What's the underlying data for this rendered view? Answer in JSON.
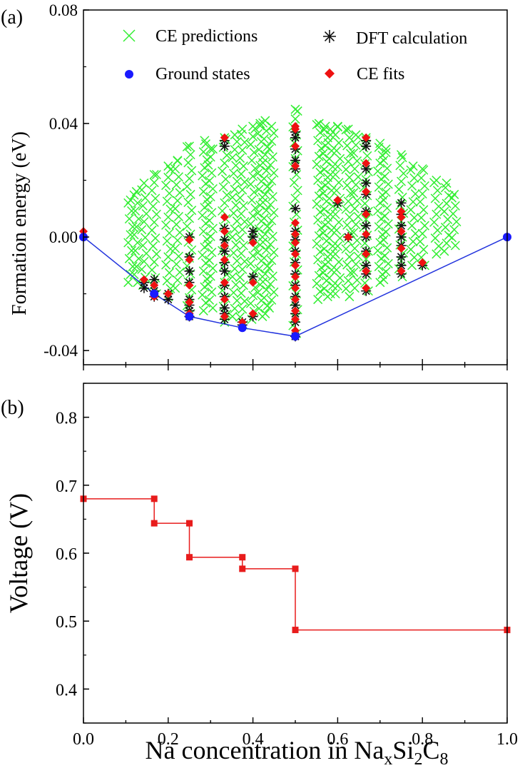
{
  "panel_labels": {
    "a": "(a)",
    "b": "(b)"
  },
  "xlabel": {
    "base": "Na concentration in Na",
    "sub1": "x",
    "mid1": "Si",
    "sub2": "2",
    "mid2": "C",
    "sub3": "8"
  },
  "colors": {
    "ce_predictions": "#33ee33",
    "dft": "#111111",
    "ground": "#1a1aff",
    "ce_fits": "#ee1111",
    "hull": "#2233dd",
    "voltage": "#e81c1c"
  },
  "chart_data": [
    {
      "type": "scatter",
      "panel": "(a)",
      "ylabel": "Formation energy (eV)",
      "xlim": [
        0,
        1.0
      ],
      "ylim": [
        -0.045,
        0.08
      ],
      "yticks": [
        -0.04,
        0.0,
        0.04,
        0.08
      ],
      "ytick_labels": [
        "-0.04",
        "0.00",
        "0.04",
        "0.08"
      ],
      "xticks": [
        0,
        0.2,
        0.4,
        0.6,
        0.8,
        1.0
      ],
      "legend": {
        "placement": "top",
        "entries": [
          {
            "label": "CE predictions",
            "marker": "x"
          },
          {
            "label": "DFT calculation",
            "marker": "asterisk"
          },
          {
            "label": "Ground states",
            "marker": "circle"
          },
          {
            "label": "CE fits",
            "marker": "diamond"
          }
        ]
      },
      "ce_prediction_columns": [
        {
          "x": 0.111,
          "ymin": -0.016,
          "ymax": 0.013
        },
        {
          "x": 0.125,
          "ymin": -0.016,
          "ymax": 0.016
        },
        {
          "x": 0.143,
          "ymin": -0.017,
          "ymax": 0.019
        },
        {
          "x": 0.167,
          "ymin": -0.02,
          "ymax": 0.022
        },
        {
          "x": 0.2,
          "ymin": -0.021,
          "ymax": 0.025
        },
        {
          "x": 0.222,
          "ymin": -0.018,
          "ymax": 0.027
        },
        {
          "x": 0.25,
          "ymin": -0.027,
          "ymax": 0.032
        },
        {
          "x": 0.286,
          "ymin": -0.026,
          "ymax": 0.034
        },
        {
          "x": 0.3,
          "ymin": -0.025,
          "ymax": 0.031
        },
        {
          "x": 0.333,
          "ymin": -0.03,
          "ymax": 0.035
        },
        {
          "x": 0.357,
          "ymin": -0.028,
          "ymax": 0.036
        },
        {
          "x": 0.375,
          "ymin": -0.031,
          "ymax": 0.038
        },
        {
          "x": 0.4,
          "ymin": -0.029,
          "ymax": 0.039
        },
        {
          "x": 0.417,
          "ymin": -0.028,
          "ymax": 0.04
        },
        {
          "x": 0.429,
          "ymin": -0.027,
          "ymax": 0.041
        },
        {
          "x": 0.444,
          "ymin": -0.025,
          "ymax": 0.039
        },
        {
          "x": 0.5,
          "ymin": -0.034,
          "ymax": 0.045
        },
        {
          "x": 0.556,
          "ymin": -0.022,
          "ymax": 0.04
        },
        {
          "x": 0.571,
          "ymin": -0.021,
          "ymax": 0.039
        },
        {
          "x": 0.583,
          "ymin": -0.02,
          "ymax": 0.038
        },
        {
          "x": 0.6,
          "ymin": -0.02,
          "ymax": 0.039
        },
        {
          "x": 0.625,
          "ymin": -0.021,
          "ymax": 0.038
        },
        {
          "x": 0.643,
          "ymin": -0.018,
          "ymax": 0.036
        },
        {
          "x": 0.667,
          "ymin": -0.019,
          "ymax": 0.035
        },
        {
          "x": 0.7,
          "ymin": -0.016,
          "ymax": 0.033
        },
        {
          "x": 0.714,
          "ymin": -0.015,
          "ymax": 0.031
        },
        {
          "x": 0.75,
          "ymin": -0.014,
          "ymax": 0.029
        },
        {
          "x": 0.778,
          "ymin": -0.01,
          "ymax": 0.025
        },
        {
          "x": 0.8,
          "ymin": -0.01,
          "ymax": 0.024
        },
        {
          "x": 0.833,
          "ymin": -0.006,
          "ymax": 0.02
        },
        {
          "x": 0.857,
          "ymin": -0.005,
          "ymax": 0.019
        },
        {
          "x": 0.875,
          "ymin": -0.003,
          "ymax": 0.015
        }
      ],
      "dft_points": [
        [
          0.143,
          -0.016
        ],
        [
          0.143,
          -0.018
        ],
        [
          0.167,
          -0.015
        ],
        [
          0.167,
          -0.019
        ],
        [
          0.167,
          -0.021
        ],
        [
          0.2,
          -0.02
        ],
        [
          0.2,
          -0.022
        ],
        [
          0.25,
          -0.028
        ],
        [
          0.25,
          -0.026
        ],
        [
          0.25,
          -0.024
        ],
        [
          0.25,
          -0.022
        ],
        [
          0.25,
          -0.016
        ],
        [
          0.25,
          -0.012
        ],
        [
          0.25,
          -0.007
        ],
        [
          0.25,
          0.0
        ],
        [
          0.333,
          -0.029
        ],
        [
          0.333,
          -0.027
        ],
        [
          0.333,
          -0.025
        ],
        [
          0.333,
          -0.021
        ],
        [
          0.333,
          -0.017
        ],
        [
          0.333,
          -0.012
        ],
        [
          0.333,
          -0.009
        ],
        [
          0.333,
          -0.005
        ],
        [
          0.333,
          -0.001
        ],
        [
          0.333,
          0.003
        ],
        [
          0.333,
          0.032
        ],
        [
          0.333,
          0.034
        ],
        [
          0.375,
          -0.031
        ],
        [
          0.375,
          -0.03
        ],
        [
          0.4,
          -0.028
        ],
        [
          0.4,
          -0.014
        ],
        [
          0.4,
          0.0
        ],
        [
          0.4,
          0.002
        ],
        [
          0.5,
          -0.035
        ],
        [
          0.5,
          -0.03
        ],
        [
          0.5,
          -0.027
        ],
        [
          0.5,
          -0.024
        ],
        [
          0.5,
          -0.021
        ],
        [
          0.5,
          -0.017
        ],
        [
          0.5,
          -0.013
        ],
        [
          0.5,
          -0.009
        ],
        [
          0.5,
          -0.005
        ],
        [
          0.5,
          -0.001
        ],
        [
          0.5,
          0.002
        ],
        [
          0.5,
          0.01
        ],
        [
          0.5,
          0.024
        ],
        [
          0.5,
          0.027
        ],
        [
          0.5,
          0.031
        ],
        [
          0.5,
          0.035
        ],
        [
          0.5,
          0.037
        ],
        [
          0.6,
          0.012
        ],
        [
          0.625,
          0.0
        ],
        [
          0.667,
          -0.019
        ],
        [
          0.667,
          -0.013
        ],
        [
          0.667,
          -0.01
        ],
        [
          0.667,
          -0.005
        ],
        [
          0.667,
          0.0
        ],
        [
          0.667,
          0.004
        ],
        [
          0.667,
          0.009
        ],
        [
          0.667,
          0.015
        ],
        [
          0.667,
          0.019
        ],
        [
          0.667,
          0.024
        ],
        [
          0.667,
          0.032
        ],
        [
          0.667,
          0.034
        ],
        [
          0.75,
          -0.013
        ],
        [
          0.75,
          -0.01
        ],
        [
          0.75,
          -0.007
        ],
        [
          0.75,
          -0.003
        ],
        [
          0.75,
          0.0
        ],
        [
          0.75,
          0.004
        ],
        [
          0.75,
          0.008
        ],
        [
          0.75,
          0.012
        ],
        [
          0.8,
          -0.01
        ]
      ],
      "ce_fits": [
        [
          0.0,
          0.002
        ],
        [
          0.143,
          -0.015
        ],
        [
          0.167,
          -0.017
        ],
        [
          0.167,
          -0.021
        ],
        [
          0.2,
          -0.02
        ],
        [
          0.25,
          -0.027
        ],
        [
          0.25,
          -0.023
        ],
        [
          0.25,
          -0.017
        ],
        [
          0.25,
          -0.008
        ],
        [
          0.25,
          -0.001
        ],
        [
          0.333,
          -0.028
        ],
        [
          0.333,
          -0.022
        ],
        [
          0.333,
          -0.016
        ],
        [
          0.333,
          -0.008
        ],
        [
          0.333,
          -0.003
        ],
        [
          0.333,
          0.002
        ],
        [
          0.333,
          0.007
        ],
        [
          0.333,
          0.035
        ],
        [
          0.375,
          -0.03
        ],
        [
          0.4,
          -0.027
        ],
        [
          0.4,
          -0.016
        ],
        [
          0.4,
          -0.002
        ],
        [
          0.5,
          -0.033
        ],
        [
          0.5,
          -0.029
        ],
        [
          0.5,
          -0.026
        ],
        [
          0.5,
          -0.022
        ],
        [
          0.5,
          -0.018
        ],
        [
          0.5,
          -0.014
        ],
        [
          0.5,
          -0.01
        ],
        [
          0.5,
          -0.006
        ],
        [
          0.5,
          -0.002
        ],
        [
          0.5,
          0.001
        ],
        [
          0.5,
          0.005
        ],
        [
          0.5,
          0.025
        ],
        [
          0.5,
          0.032
        ],
        [
          0.5,
          0.038
        ],
        [
          0.5,
          0.039
        ],
        [
          0.6,
          0.013
        ],
        [
          0.625,
          0.0
        ],
        [
          0.667,
          -0.018
        ],
        [
          0.667,
          -0.012
        ],
        [
          0.667,
          -0.006
        ],
        [
          0.667,
          0.001
        ],
        [
          0.667,
          0.008
        ],
        [
          0.667,
          0.016
        ],
        [
          0.667,
          0.026
        ],
        [
          0.667,
          0.035
        ],
        [
          0.75,
          -0.012
        ],
        [
          0.75,
          -0.004
        ],
        [
          0.75,
          0.002
        ],
        [
          0.75,
          0.007
        ],
        [
          0.75,
          0.009
        ],
        [
          0.8,
          -0.009
        ],
        [
          1.0,
          0.0
        ]
      ],
      "ground_states": [
        [
          0.0,
          0.0
        ],
        [
          0.167,
          -0.02
        ],
        [
          0.25,
          -0.028
        ],
        [
          0.375,
          -0.032
        ],
        [
          0.5,
          -0.035
        ],
        [
          1.0,
          0.0
        ]
      ]
    },
    {
      "type": "line",
      "panel": "(b)",
      "ylabel": "Voltage (V)",
      "xlabel": "Na concentration in NaxSi2C8",
      "xlim": [
        0,
        1.0
      ],
      "ylim": [
        0.35,
        0.85
      ],
      "xticks": [
        0.0,
        0.2,
        0.4,
        0.6,
        0.8,
        1.0
      ],
      "xtick_labels": [
        "0.0",
        "0.2",
        "0.4",
        "0.6",
        "0.8",
        "1.0"
      ],
      "yticks": [
        0.4,
        0.5,
        0.6,
        0.7,
        0.8
      ],
      "ytick_labels": [
        "0.4",
        "0.5",
        "0.6",
        "0.7",
        "0.8"
      ],
      "series": [
        {
          "x": [
            0.0,
            0.167,
            0.167,
            0.25,
            0.25,
            0.375,
            0.375,
            0.5,
            0.5,
            1.0
          ],
          "y": [
            0.68,
            0.68,
            0.644,
            0.644,
            0.594,
            0.594,
            0.577,
            0.577,
            0.487,
            0.487
          ]
        }
      ]
    }
  ]
}
